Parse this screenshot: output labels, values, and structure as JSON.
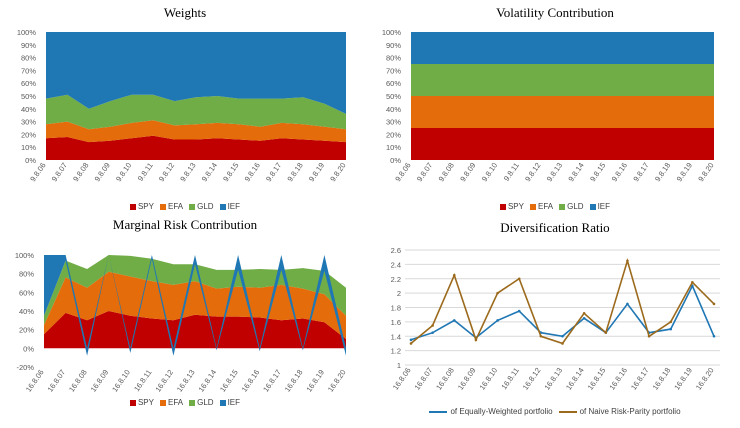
{
  "colors": {
    "SPY": "#c00000",
    "EFA": "#e46c0a",
    "GLD": "#70ad47",
    "IEF": "#1f77b4",
    "equal_weighted": "#1f77b4",
    "risk_parity": "#9c6a1c"
  },
  "chart_data": [
    {
      "type": "area",
      "stacked": true,
      "title": "Weights",
      "x": [
        "9.8.06",
        "9.8.07",
        "9.8.08",
        "9.8.09",
        "9.8.10",
        "9.8.11",
        "9.8.12",
        "9.8.13",
        "9.8.14",
        "9.8.15",
        "9.8.16",
        "9.8.17",
        "9.8.18",
        "9.8.19",
        "9.8.20"
      ],
      "y_ticks": [
        "0%",
        "10%",
        "20%",
        "30%",
        "40%",
        "50%",
        "60%",
        "70%",
        "80%",
        "90%",
        "100%"
      ],
      "ylim": [
        0,
        100
      ],
      "grid": false,
      "legend_position": "bottom",
      "series": [
        {
          "name": "SPY",
          "values": [
            17,
            18,
            14,
            15,
            17,
            19,
            16,
            16,
            17,
            16,
            15,
            17,
            16,
            15,
            14
          ]
        },
        {
          "name": "EFA",
          "values": [
            11,
            12,
            10,
            11,
            12,
            12,
            11,
            12,
            12,
            12,
            11,
            12,
            12,
            11,
            10
          ]
        },
        {
          "name": "GLD",
          "values": [
            20,
            21,
            16,
            20,
            22,
            20,
            19,
            21,
            21,
            20,
            22,
            19,
            21,
            18,
            12
          ]
        },
        {
          "name": "IEF",
          "values": [
            52,
            49,
            60,
            54,
            49,
            49,
            54,
            51,
            50,
            52,
            52,
            52,
            51,
            56,
            64
          ]
        }
      ]
    },
    {
      "type": "area",
      "stacked": true,
      "title": "Volatility Contribution",
      "x": [
        "9.8.06",
        "9.8.07",
        "9.8.08",
        "9.8.09",
        "9.8.10",
        "9.8.11",
        "9.8.12",
        "9.8.13",
        "9.8.14",
        "9.8.15",
        "9.8.16",
        "9.8.17",
        "9.8.18",
        "9.8.19",
        "9.8.20"
      ],
      "y_ticks": [
        "0%",
        "10%",
        "20%",
        "30%",
        "40%",
        "50%",
        "60%",
        "70%",
        "80%",
        "90%",
        "100%"
      ],
      "ylim": [
        0,
        100
      ],
      "grid": false,
      "legend_position": "bottom",
      "series": [
        {
          "name": "SPY",
          "values": [
            25,
            25,
            25,
            25,
            25,
            25,
            25,
            25,
            25,
            25,
            25,
            25,
            25,
            25,
            25
          ]
        },
        {
          "name": "EFA",
          "values": [
            25,
            25,
            25,
            25,
            25,
            25,
            25,
            25,
            25,
            25,
            25,
            25,
            25,
            25,
            25
          ]
        },
        {
          "name": "GLD",
          "values": [
            25,
            25,
            25,
            25,
            25,
            25,
            25,
            25,
            25,
            25,
            25,
            25,
            25,
            25,
            25
          ]
        },
        {
          "name": "IEF",
          "values": [
            25,
            25,
            25,
            25,
            25,
            25,
            25,
            25,
            25,
            25,
            25,
            25,
            25,
            25,
            25
          ]
        }
      ]
    },
    {
      "type": "area",
      "stacked": true,
      "title": "Marginal Risk Contribution",
      "x": [
        "16.8.06",
        "16.8.07",
        "16.8.08",
        "16.8.09",
        "16.8.10",
        "16.8.11",
        "16.8.12",
        "16.8.13",
        "16.8.14",
        "16.8.15",
        "16.8.16",
        "16.8.17",
        "16.8.18",
        "16.8.19",
        "16.8.20"
      ],
      "y_ticks": [
        "-20%",
        "0%",
        "20%",
        "40%",
        "60%",
        "80%",
        "100%"
      ],
      "ylim": [
        -20,
        100
      ],
      "grid": false,
      "legend_position": "bottom",
      "series": [
        {
          "name": "SPY",
          "values": [
            15,
            38,
            30,
            40,
            35,
            32,
            30,
            36,
            34,
            34,
            33,
            30,
            32,
            28,
            10
          ]
        },
        {
          "name": "EFA",
          "values": [
            10,
            38,
            35,
            42,
            42,
            40,
            38,
            36,
            30,
            32,
            32,
            38,
            32,
            30,
            25
          ]
        },
        {
          "name": "GLD",
          "values": [
            10,
            18,
            20,
            18,
            22,
            24,
            22,
            18,
            20,
            18,
            20,
            16,
            22,
            25,
            30
          ]
        },
        {
          "name": "IEF",
          "values": [
            65,
            6,
            -8,
            0,
            -5,
            4,
            -8,
            10,
            -2,
            16,
            -3,
            16,
            -2,
            17,
            -8
          ]
        }
      ]
    },
    {
      "type": "line",
      "title": "Diversification Ratio",
      "x": [
        "16.8.06",
        "16.8.07",
        "16.8.08",
        "16.8.09",
        "16.8.10",
        "16.8.11",
        "16.8.12",
        "16.8.13",
        "16.8.14",
        "16.8.15",
        "16.8.16",
        "16.8.17",
        "16.8.18",
        "16.8.19",
        "16.8.20"
      ],
      "y_ticks": [
        "1",
        "1.2",
        "1.4",
        "1.6",
        "1.8",
        "2",
        "2.2",
        "2.4",
        "2.6"
      ],
      "ylim": [
        1,
        2.6
      ],
      "grid": true,
      "legend_position": "bottom",
      "series": [
        {
          "name": "of Equally-Weighted portfolio",
          "values": [
            1.35,
            1.45,
            1.62,
            1.38,
            1.62,
            1.75,
            1.45,
            1.4,
            1.65,
            1.45,
            1.85,
            1.45,
            1.5,
            2.1,
            1.4
          ]
        },
        {
          "name": "of Naive Risk-Parity portfolio",
          "values": [
            1.3,
            1.55,
            2.25,
            1.35,
            2.0,
            2.2,
            1.4,
            1.3,
            1.72,
            1.45,
            2.45,
            1.4,
            1.6,
            2.15,
            1.85
          ]
        }
      ]
    }
  ]
}
